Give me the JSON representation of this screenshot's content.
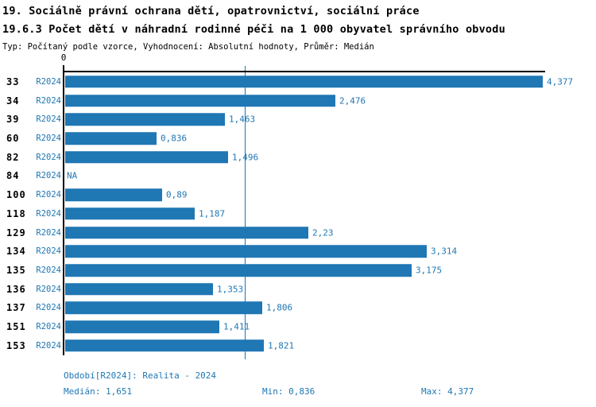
{
  "header": {
    "title_line1": "19. Sociálně právní ochrana dětí, opatrovnictví, sociální práce",
    "title_line2": "19.6.3 Počet dětí v náhradní rodinné péči na 1 000 obyvatel správního obvodu",
    "meta_line": "Typ: Počítaný podle vzorce, Vyhodnocení: Absolutní hodnoty, Průměr: Medián"
  },
  "chart_data": {
    "type": "bar",
    "orientation": "horizontal",
    "title": "19.6.3 Počet dětí v náhradní rodinné péči na 1 000 obyvatel správního obvodu",
    "categories": [
      "33",
      "34",
      "39",
      "60",
      "82",
      "84",
      "100",
      "118",
      "129",
      "134",
      "135",
      "136",
      "137",
      "151",
      "153"
    ],
    "series": [
      {
        "name": "R2024",
        "values": [
          4.377,
          2.476,
          1.463,
          0.836,
          1.496,
          null,
          0.89,
          1.187,
          2.23,
          3.314,
          3.175,
          1.353,
          1.806,
          1.411,
          1.821
        ]
      }
    ],
    "value_labels": [
      "4,377",
      "2,476",
      "1,463",
      "0,836",
      "1,496",
      "NA",
      "0,89",
      "1,187",
      "2,23",
      "3,314",
      "3,175",
      "1,353",
      "1,806",
      "1,411",
      "1,821"
    ],
    "row_series_label": "R2024",
    "axis_origin_label": "0",
    "xlim": [
      0,
      4.377
    ],
    "median_value": 1.651,
    "grid": false,
    "legend_position": "none"
  },
  "footer": {
    "period_label": "Období[R2024]: Realita - 2024",
    "median_label": "Medián: 1,651",
    "min_label": "Min: 0,836",
    "max_label": "Max: 4,377"
  },
  "colors": {
    "bar": "#1f77b4",
    "text_blue": "#1f77b4",
    "axis": "#000000"
  }
}
